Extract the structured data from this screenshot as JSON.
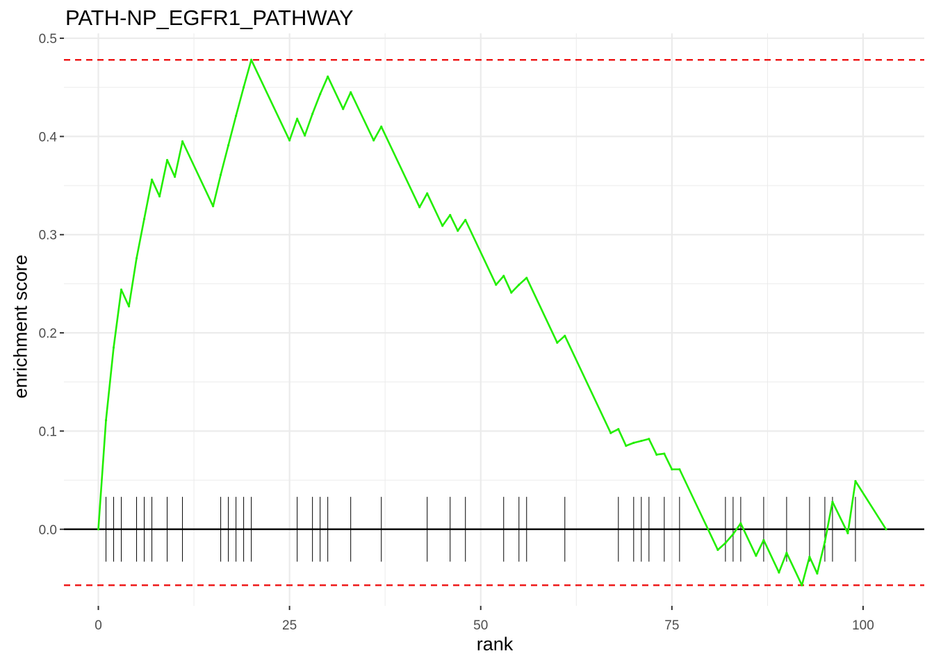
{
  "chart_data": {
    "type": "line",
    "title": "PATH-NP_EGFR1_PATHWAY",
    "xlabel": "rank",
    "ylabel": "enrichment score",
    "xlim": [
      -4.5,
      108
    ],
    "ylim": [
      -0.078,
      0.505
    ],
    "x_ticks": [
      0,
      25,
      50,
      75,
      100
    ],
    "y_ticks": [
      0.0,
      0.1,
      0.2,
      0.3,
      0.4,
      0.5
    ],
    "y_tick_labels": [
      "0.0",
      "0.1",
      "0.2",
      "0.3",
      "0.4",
      "0.5"
    ],
    "grid": true,
    "legend": "none",
    "colors": {
      "line": "#22ee00",
      "threshold": "#ee1111",
      "zero_line": "#000000",
      "rug": "#000000",
      "grid": "#ebebeb",
      "tick_text": "#4d4d4d"
    },
    "series": [
      {
        "x": [
          0,
          1,
          2,
          3,
          4,
          5,
          6,
          7,
          8,
          9,
          10,
          11,
          15,
          16,
          17,
          18,
          19,
          20,
          25,
          26,
          27,
          28,
          29,
          30,
          32,
          33,
          36,
          37,
          42,
          43,
          45,
          46,
          47,
          48,
          52,
          53,
          54,
          55,
          56,
          60,
          61,
          67,
          68,
          69,
          70,
          71,
          72,
          73,
          74,
          75,
          76,
          81,
          82,
          83,
          84,
          86,
          87,
          89,
          90,
          92,
          93,
          94,
          95,
          96,
          98,
          99,
          103
        ],
        "y": [
          0.0,
          0.111,
          0.185,
          0.244,
          0.227,
          0.276,
          0.316,
          0.356,
          0.339,
          0.376,
          0.359,
          0.395,
          0.329,
          0.361,
          0.391,
          0.421,
          0.45,
          0.478,
          0.396,
          0.418,
          0.401,
          0.423,
          0.443,
          0.461,
          0.428,
          0.445,
          0.396,
          0.41,
          0.328,
          0.342,
          0.309,
          0.32,
          0.304,
          0.315,
          0.249,
          0.258,
          0.241,
          0.249,
          0.256,
          0.19,
          0.197,
          0.098,
          0.102,
          0.085,
          0.088,
          0.09,
          0.092,
          0.076,
          0.077,
          0.061,
          0.061,
          -0.021,
          -0.014,
          -0.005,
          0.006,
          -0.027,
          -0.011,
          -0.044,
          -0.024,
          -0.057,
          -0.028,
          -0.045,
          -0.013,
          0.028,
          -0.004,
          0.049,
          0.0
        ]
      }
    ],
    "thresholds": [
      0.478,
      -0.057
    ],
    "rug_positions": [
      1,
      2,
      3,
      5,
      6,
      7,
      9,
      11,
      16,
      17,
      18,
      19,
      20,
      26,
      28,
      29,
      30,
      33,
      37,
      43,
      46,
      48,
      53,
      55,
      56,
      61,
      68,
      70,
      71,
      72,
      74,
      76,
      82,
      83,
      84,
      87,
      90,
      93,
      95,
      96,
      99
    ],
    "rug_range": [
      -0.033,
      0.033
    ]
  }
}
